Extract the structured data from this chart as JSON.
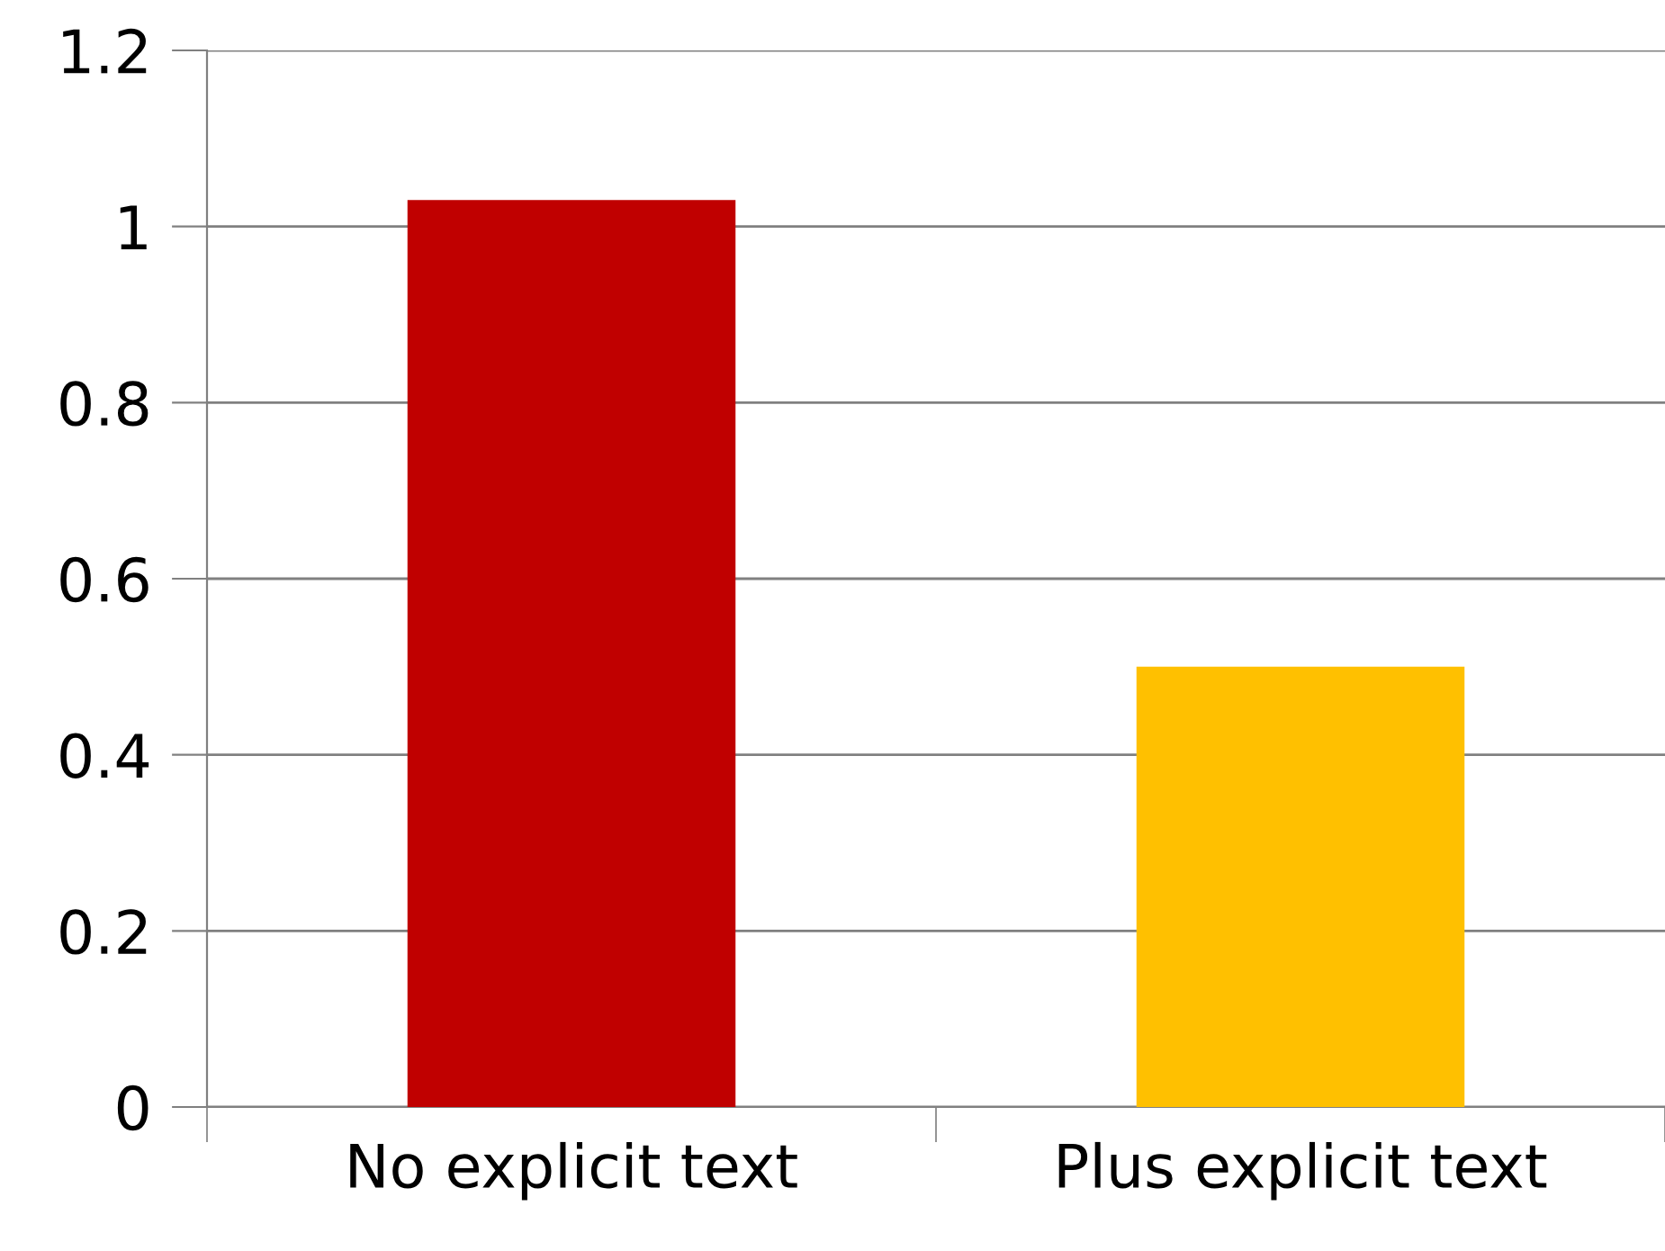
{
  "chart_data": {
    "type": "bar",
    "categories": [
      "No explicit text",
      "Plus explicit text"
    ],
    "values": [
      1.03,
      0.5
    ],
    "colors": [
      "#c00000",
      "#ffc000"
    ],
    "ylim": [
      0,
      1.2
    ],
    "yticks": [
      0,
      0.2,
      0.4,
      0.6,
      0.8,
      1,
      1.2
    ],
    "grid": "y",
    "legend": false
  }
}
